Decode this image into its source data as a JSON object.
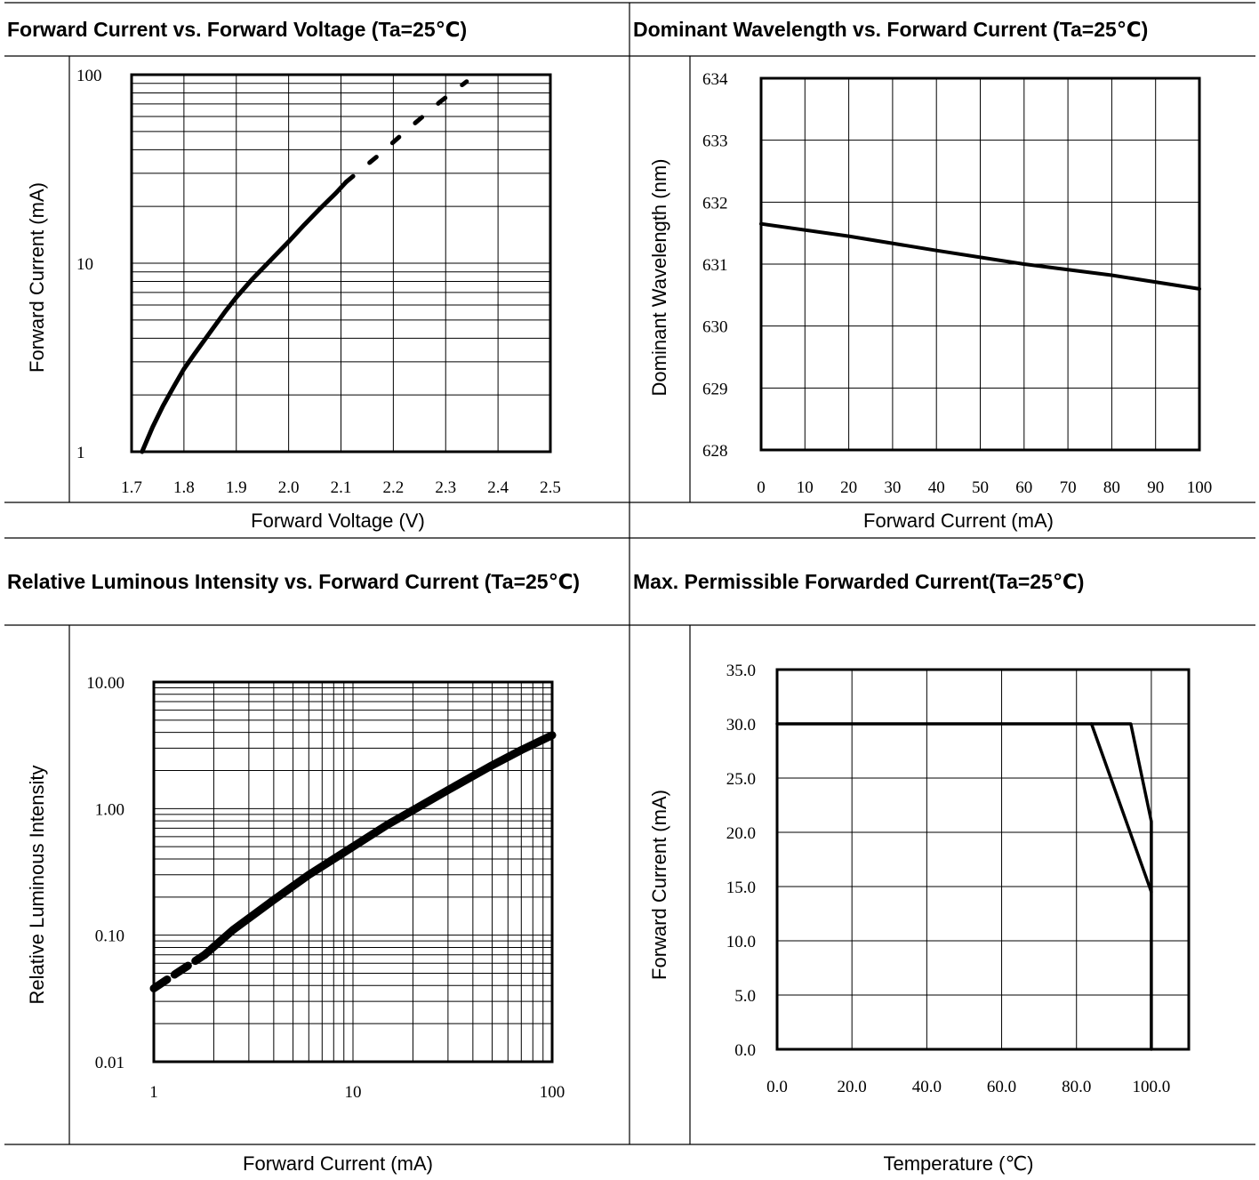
{
  "chart_data": [
    {
      "type": "line",
      "title": "Forward Current vs. Forward Voltage (Ta=25℃)",
      "xlabel": "Forward Voltage (V)",
      "ylabel": "Forward Current (mA)",
      "x_scale": "linear",
      "y_scale": "log",
      "xlim": [
        1.7,
        2.5
      ],
      "ylim": [
        1,
        100
      ],
      "x_ticks": [
        "1.7",
        "1.8",
        "1.9",
        "2.0",
        "2.1",
        "2.2",
        "2.3",
        "2.4",
        "2.5"
      ],
      "y_ticks": [
        "1",
        "10",
        "100"
      ],
      "grid": true,
      "series": [
        {
          "x": [
            1.72,
            1.74,
            1.76,
            1.78,
            1.8,
            1.82,
            1.85,
            1.88,
            1.9,
            1.93,
            1.96,
            2.0,
            2.03,
            2.06,
            2.09,
            2.11
          ],
          "y": [
            1.0,
            1.35,
            1.75,
            2.2,
            2.75,
            3.3,
            4.3,
            5.6,
            6.6,
            8.2,
            10.0,
            13.0,
            16.0,
            19.5,
            23.5,
            27.0
          ]
        },
        {
          "x": [
            2.11,
            2.17,
            2.23,
            2.29,
            2.34
          ],
          "y": [
            27.0,
            37.0,
            52.0,
            72.0,
            92.0
          ]
        }
      ]
    },
    {
      "type": "line",
      "title": "Dominant Wavelength vs. Forward Current (Ta=25℃)",
      "xlabel": "Forward Current (mA)",
      "ylabel": "Dominant Wavelength (nm)",
      "xlim": [
        0,
        100
      ],
      "ylim": [
        628,
        634
      ],
      "x_ticks": [
        "0",
        "10",
        "20",
        "30",
        "40",
        "50",
        "60",
        "70",
        "80",
        "90",
        "100"
      ],
      "y_ticks": [
        "628",
        "629",
        "630",
        "631",
        "632",
        "633",
        "634"
      ],
      "grid": true,
      "series": [
        {
          "x": [
            0,
            20,
            40,
            60,
            80,
            100
          ],
          "y": [
            631.65,
            631.45,
            631.22,
            631.0,
            630.82,
            630.6
          ]
        }
      ]
    },
    {
      "type": "line",
      "title": "Relative Luminous Intensity vs. Forward Current (Ta=25℃)",
      "xlabel": "Forward Current (mA)",
      "ylabel": "Relative Luminous Intensity",
      "x_scale": "log",
      "y_scale": "log",
      "xlim": [
        1,
        100
      ],
      "ylim": [
        0.01,
        10
      ],
      "x_ticks": [
        "1",
        "10",
        "100"
      ],
      "y_ticks": [
        "0.01",
        "0.10",
        "1.00",
        "10.00"
      ],
      "grid": true,
      "series": [
        {
          "x": [
            1,
            1.3,
            1.8
          ],
          "y": [
            0.038,
            0.05,
            0.07
          ]
        },
        {
          "x": [
            1.8,
            2.5,
            4,
            6,
            10,
            15,
            20,
            30,
            50,
            70,
            100
          ],
          "y": [
            0.07,
            0.11,
            0.19,
            0.3,
            0.5,
            0.75,
            0.97,
            1.4,
            2.2,
            2.9,
            3.8
          ]
        }
      ]
    },
    {
      "type": "line",
      "title": "Max. Permissible Forwarded Current(Ta=25℃)",
      "xlabel": "Temperature (℃)",
      "ylabel": "Forward Current (mA)",
      "xlim": [
        0,
        110
      ],
      "ylim": [
        0,
        35
      ],
      "x_ticks": [
        "0.0",
        "20.0",
        "40.0",
        "60.0",
        "80.0",
        "100.0"
      ],
      "y_ticks": [
        "0.0",
        "5.0",
        "10.0",
        "15.0",
        "20.0",
        "25.0",
        "30.0",
        "35.0"
      ],
      "grid": true,
      "series": [
        {
          "x": [
            0,
            84,
            100,
            100
          ],
          "y": [
            30,
            30,
            14.5,
            0
          ]
        },
        {
          "x": [
            84,
            94.5,
            100,
            100
          ],
          "y": [
            30,
            30,
            21,
            14.5
          ]
        }
      ]
    }
  ]
}
